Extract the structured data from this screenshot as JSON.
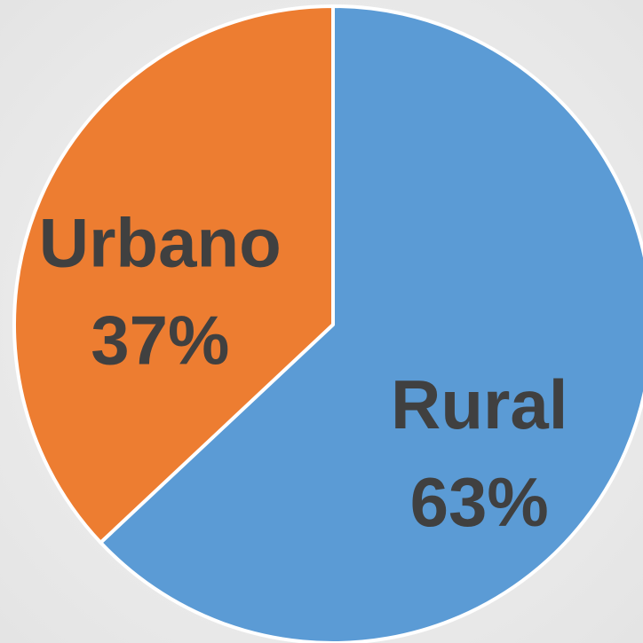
{
  "chart_data": {
    "type": "pie",
    "categories": [
      "Rural",
      "Urbano"
    ],
    "values": [
      63,
      37
    ],
    "value_labels": [
      "63%",
      "37%"
    ],
    "colors": [
      "#5b9bd5",
      "#ed7d31"
    ]
  }
}
